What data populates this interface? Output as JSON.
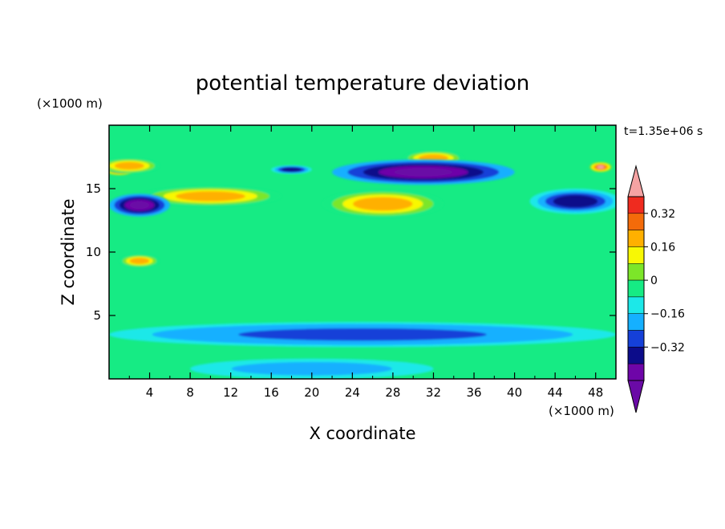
{
  "chart_data": {
    "type": "heatmap",
    "title": "potential temperature deviation",
    "xlabel": "X coordinate",
    "ylabel": "Z coordinate",
    "x_unit": "(×1000 m)",
    "y_unit": "(×1000 m)",
    "time_label": "t=1.35e+06 s",
    "xlim": [
      0,
      50
    ],
    "ylim": [
      0,
      20
    ],
    "x_ticks": [
      "4",
      "8",
      "12",
      "16",
      "20",
      "24",
      "28",
      "32",
      "36",
      "40",
      "44",
      "48"
    ],
    "y_ticks": [
      "5",
      "10",
      "15"
    ],
    "colorbar": {
      "levels": [
        -0.4,
        -0.32,
        -0.24,
        -0.16,
        -0.08,
        0,
        0.08,
        0.16,
        0.24,
        0.32,
        0.4
      ],
      "colors": [
        "#6a0aa6",
        "#6e05a8",
        "#0c0c8a",
        "#1540d8",
        "#15b0ff",
        "#1ce8e8",
        "#16eb84",
        "#7ce629",
        "#f8f804",
        "#ffb000",
        "#f46b0a",
        "#ef2b1f",
        "#f5a3a3"
      ],
      "tick_labels": [
        "0.32",
        "0.16",
        "0",
        "−0.16",
        "−0.32"
      ],
      "extend": "both"
    },
    "background_color": "#16eb84",
    "features": [
      {
        "kind": "warm",
        "x": 1,
        "z": 16.5,
        "w": 3,
        "h": 0.9,
        "v": 0.45
      },
      {
        "kind": "warm",
        "x": 2,
        "z": 16.8,
        "w": 6,
        "h": 1.2,
        "v": 0.3
      },
      {
        "kind": "warm",
        "x": 48.5,
        "z": 16.7,
        "w": 2.2,
        "h": 0.8,
        "v": 0.45
      },
      {
        "kind": "warm",
        "x": 28,
        "z": 13.8,
        "w": 5.5,
        "h": 1.2,
        "v": 0.45
      },
      {
        "kind": "warm",
        "x": 27,
        "z": 13.8,
        "w": 12,
        "h": 2.2,
        "v": 0.3
      },
      {
        "kind": "warm",
        "x": 10,
        "z": 14.4,
        "w": 14,
        "h": 1.6,
        "v": 0.3
      },
      {
        "kind": "warm",
        "x": 32,
        "z": 17.4,
        "w": 6,
        "h": 1.2,
        "v": 0.3
      },
      {
        "kind": "warm",
        "x": 3,
        "z": 9.3,
        "w": 4,
        "h": 1,
        "v": 0.3
      },
      {
        "kind": "cold",
        "x": 31,
        "z": 16.3,
        "w": 18,
        "h": 2,
        "v": -0.45
      },
      {
        "kind": "cold",
        "x": 3,
        "z": 13.7,
        "w": 6,
        "h": 1.8,
        "v": -0.45
      },
      {
        "kind": "cold",
        "x": 46,
        "z": 14,
        "w": 9,
        "h": 2,
        "v": -0.32
      },
      {
        "kind": "cold",
        "x": 18,
        "z": 16.5,
        "w": 4,
        "h": 0.7,
        "v": -0.32
      },
      {
        "kind": "cold",
        "x": 25,
        "z": 3.5,
        "w": 50,
        "h": 2,
        "v": -0.24
      },
      {
        "kind": "cold",
        "x": 20,
        "z": 0.8,
        "w": 24,
        "h": 1.6,
        "v": -0.16
      }
    ]
  }
}
